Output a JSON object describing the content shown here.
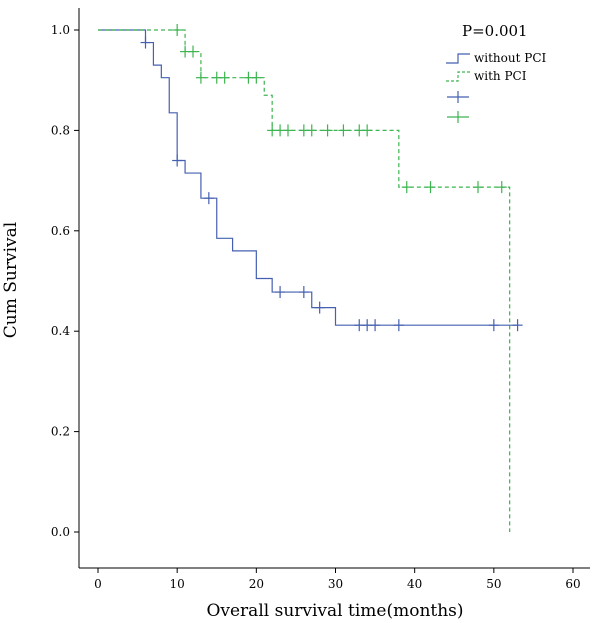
{
  "chart_data": {
    "type": "line",
    "subtype": "kaplan-meier",
    "title": "",
    "annotation": "P=0.001",
    "xlabel": "Overall survival time(months)",
    "ylabel": "Cum Survival",
    "xlim": [
      0,
      60
    ],
    "ylim": [
      0,
      1.0
    ],
    "xticks": [
      0,
      10,
      20,
      30,
      40,
      50,
      60
    ],
    "yticks": [
      0.0,
      0.2,
      0.4,
      0.6,
      0.8,
      1.0
    ],
    "xtick_labels": [
      "0",
      "10",
      "20",
      "30",
      "40",
      "50",
      "60"
    ],
    "ytick_labels": [
      "0.0",
      "0.2",
      "0.4",
      "0.6",
      "0.8",
      "1.0"
    ],
    "grid": false,
    "legend_position": "top-right",
    "legend": [
      {
        "label": "without PCI",
        "kind": "step",
        "series": 0
      },
      {
        "label": "with PCI",
        "kind": "step",
        "series": 1
      },
      {
        "label": "",
        "kind": "censor",
        "series": 0
      },
      {
        "label": "",
        "kind": "censor",
        "series": 1
      }
    ],
    "series": [
      {
        "name": "without PCI",
        "color": "#4560b0",
        "dashed": false,
        "steps": [
          [
            0,
            1.0
          ],
          [
            6,
            0.975
          ],
          [
            7,
            0.93
          ],
          [
            8,
            0.905
          ],
          [
            9,
            0.835
          ],
          [
            10,
            0.74
          ],
          [
            11,
            0.715
          ],
          [
            13,
            0.665
          ],
          [
            15,
            0.585
          ],
          [
            17,
            0.56
          ],
          [
            20,
            0.505
          ],
          [
            22,
            0.478
          ],
          [
            27,
            0.447
          ],
          [
            30,
            0.412
          ]
        ],
        "end_x": 53,
        "censored": [
          [
            6,
            0.975
          ],
          [
            10,
            0.74
          ],
          [
            14,
            0.665
          ],
          [
            23,
            0.478
          ],
          [
            26,
            0.478
          ],
          [
            28,
            0.447
          ],
          [
            33,
            0.412
          ],
          [
            34,
            0.412
          ],
          [
            35,
            0.412
          ],
          [
            38,
            0.412
          ],
          [
            50,
            0.412
          ],
          [
            53,
            0.412
          ]
        ]
      },
      {
        "name": "with PCI",
        "color": "#3cb450",
        "dashed": true,
        "steps": [
          [
            0,
            1.0
          ],
          [
            11,
            0.957
          ],
          [
            13,
            0.905
          ],
          [
            21,
            0.87
          ],
          [
            22,
            0.8
          ],
          [
            38,
            0.687
          ],
          [
            52,
            0.0
          ]
        ],
        "end_x": 52,
        "censored": [
          [
            10,
            1.0
          ],
          [
            11,
            0.957
          ],
          [
            12,
            0.957
          ],
          [
            13,
            0.905
          ],
          [
            15,
            0.905
          ],
          [
            16,
            0.905
          ],
          [
            19,
            0.905
          ],
          [
            20,
            0.905
          ],
          [
            22,
            0.8
          ],
          [
            23,
            0.8
          ],
          [
            24,
            0.8
          ],
          [
            26,
            0.8
          ],
          [
            27,
            0.8
          ],
          [
            29,
            0.8
          ],
          [
            31,
            0.8
          ],
          [
            33,
            0.8
          ],
          [
            34,
            0.8
          ],
          [
            39,
            0.687
          ],
          [
            42,
            0.687
          ],
          [
            48,
            0.687
          ],
          [
            51,
            0.687
          ]
        ]
      }
    ]
  }
}
